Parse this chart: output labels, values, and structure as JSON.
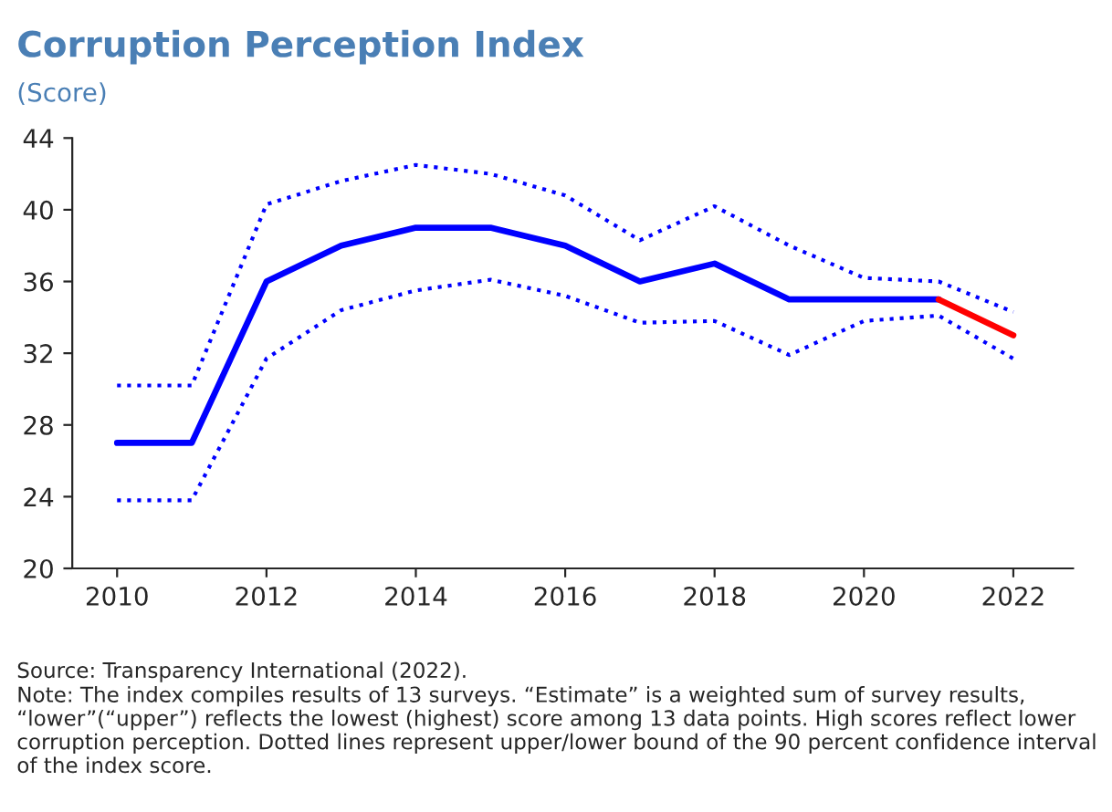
{
  "chart_data": {
    "type": "line",
    "title": "Corruption Perception Index",
    "subtitle": "(Score)",
    "x": [
      2010,
      2011,
      2012,
      2013,
      2014,
      2015,
      2016,
      2017,
      2018,
      2019,
      2020,
      2021,
      2022
    ],
    "series": [
      {
        "color": "#0000ff",
        "line_style": "dotted",
        "values": [
          30.2,
          30.2,
          40.3,
          41.6,
          42.5,
          42.0,
          40.8,
          38.3,
          40.2,
          38.0,
          36.2,
          36.0,
          34.3
        ]
      },
      {
        "color": "#0000ff",
        "line_style": "dotted",
        "values": [
          23.8,
          23.8,
          31.7,
          34.4,
          35.5,
          36.1,
          35.2,
          33.7,
          33.8,
          31.9,
          33.8,
          34.1,
          31.7
        ]
      },
      {
        "color": "#0000ff",
        "line_style": "solid",
        "values": [
          27,
          27,
          36,
          38,
          39,
          39,
          38,
          36,
          37,
          35,
          35,
          35,
          null
        ]
      },
      {
        "color": "#ff0000",
        "line_style": "solid",
        "x": [
          2021,
          2022
        ],
        "values": [
          35,
          33
        ]
      }
    ],
    "xlim": [
      2009.4,
      2022.8
    ],
    "xticks": [
      2010,
      2012,
      2014,
      2016,
      2018,
      2020,
      2022
    ],
    "ylim": [
      20,
      44
    ],
    "yticks": [
      20,
      24,
      28,
      32,
      36,
      40,
      44
    ],
    "grid": false,
    "legend": false,
    "annotations": [
      "Source: Transparency International (2022).",
      "Note: The index compiles results of 13 surveys. “Estimate” is a weighted sum of survey results, “lower”(“upper”) reflects the lowest (highest) score among 13 data points. High scores reflect lower corruption perception. Dotted lines represent upper/lower bound of the 90 percent confidence interval of the index score."
    ]
  }
}
